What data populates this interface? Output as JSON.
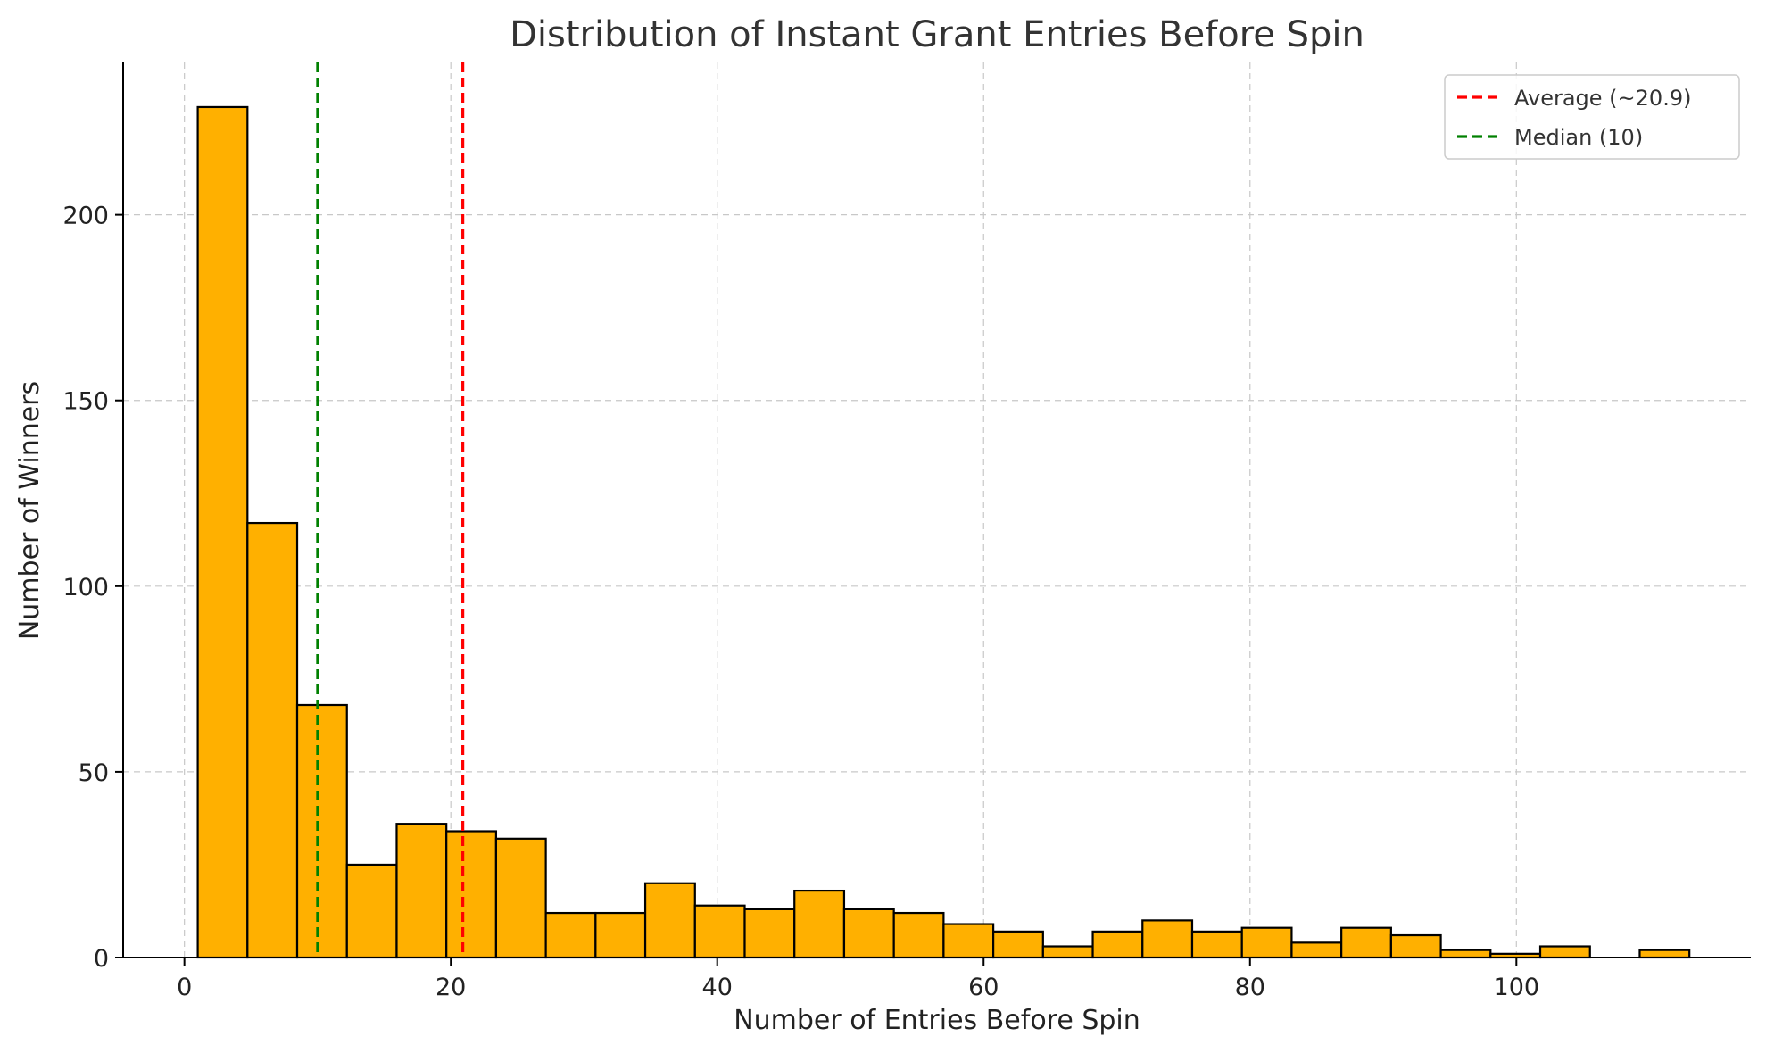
{
  "chart_data": {
    "type": "bar",
    "title": "Distribution of Instant Grant Entries Before Spin",
    "xlabel": "Number of Entries Before Spin",
    "ylabel": "Number of Winners",
    "xlim": [
      -4.6,
      117.6
    ],
    "ylim": [
      0,
      241
    ],
    "xticks": [
      0,
      20,
      40,
      60,
      80,
      100
    ],
    "yticks": [
      0,
      50,
      100,
      150,
      200
    ],
    "grid": true,
    "bar_color": "#FFB000",
    "bar_edge_color": "#000000",
    "bins": {
      "start": 1,
      "width": 3.733,
      "values": [
        229,
        117,
        68,
        25,
        36,
        34,
        32,
        12,
        12,
        20,
        14,
        13,
        18,
        13,
        12,
        9,
        7,
        3,
        7,
        10,
        7,
        8,
        4,
        8,
        6,
        2,
        1,
        3,
        0,
        2
      ]
    },
    "reference_lines": [
      {
        "name": "Average (~20.9)",
        "x": 20.9,
        "color": "#FF0000",
        "style": "dashed"
      },
      {
        "name": "Median (10)",
        "x": 10,
        "color": "#008000",
        "style": "dashed"
      }
    ],
    "legend": {
      "placement": "top-right"
    }
  }
}
